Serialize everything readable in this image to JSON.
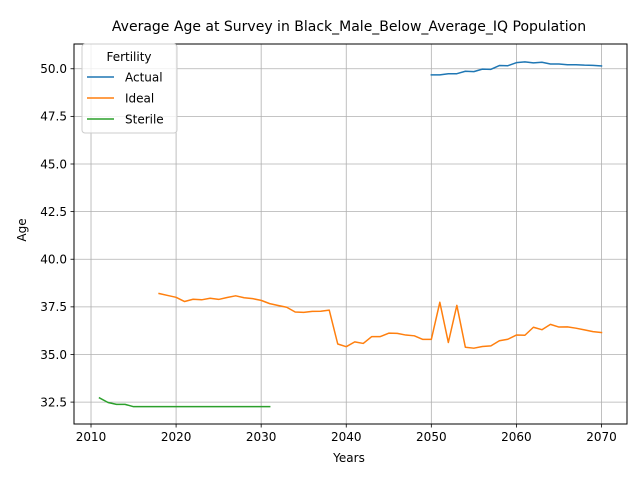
{
  "chart_data": {
    "type": "line",
    "title": "Average Age at Survey in Black_Male_Below_Average_IQ Population",
    "xlabel": "Years",
    "ylabel": "Age",
    "xlim": [
      2008,
      2073
    ],
    "ylim": [
      31.35,
      51.3
    ],
    "xticks": [
      2010,
      2020,
      2030,
      2040,
      2050,
      2060,
      2070
    ],
    "xtick_labels": [
      "2010",
      "2020",
      "2030",
      "2040",
      "2050",
      "2060",
      "2070"
    ],
    "yticks": [
      32.5,
      35.0,
      37.5,
      40.0,
      42.5,
      45.0,
      47.5,
      50.0
    ],
    "ytick_labels": [
      "32.5",
      "35.0",
      "37.5",
      "40.0",
      "42.5",
      "45.0",
      "47.5",
      "50.0"
    ],
    "grid": true,
    "legend": {
      "title": "Fertility",
      "placement": "top-left"
    },
    "series": [
      {
        "name": "Actual",
        "color": "#1f77b4",
        "x": [
          2050,
          2051,
          2052,
          2053,
          2054,
          2055,
          2056,
          2057,
          2058,
          2059,
          2060,
          2061,
          2062,
          2063,
          2064,
          2065,
          2066,
          2067,
          2068,
          2069,
          2070
        ],
        "y": [
          49.68,
          49.68,
          49.74,
          49.74,
          49.87,
          49.85,
          49.98,
          49.97,
          50.17,
          50.16,
          50.32,
          50.36,
          50.31,
          50.34,
          50.25,
          50.25,
          50.21,
          50.21,
          50.19,
          50.18,
          50.15
        ]
      },
      {
        "name": "Ideal",
        "color": "#ff7f0e",
        "x": [
          2018,
          2019,
          2020,
          2021,
          2022,
          2023,
          2024,
          2025,
          2026,
          2027,
          2028,
          2029,
          2030,
          2031,
          2032,
          2033,
          2034,
          2035,
          2036,
          2037,
          2038,
          2039,
          2040,
          2041,
          2042,
          2043,
          2044,
          2045,
          2046,
          2047,
          2048,
          2049,
          2050,
          2051,
          2052,
          2053,
          2054,
          2055,
          2056,
          2057,
          2058,
          2059,
          2060,
          2061,
          2062,
          2063,
          2064,
          2065,
          2066,
          2067,
          2068,
          2069,
          2070
        ],
        "y": [
          38.2,
          38.1,
          38.0,
          37.78,
          37.9,
          37.87,
          37.95,
          37.89,
          37.99,
          38.08,
          37.98,
          37.93,
          37.84,
          37.67,
          37.57,
          37.48,
          37.23,
          37.21,
          37.26,
          37.27,
          37.33,
          35.55,
          35.41,
          35.66,
          35.58,
          35.94,
          35.94,
          36.12,
          36.11,
          36.02,
          35.98,
          35.79,
          35.79,
          37.74,
          35.63,
          37.58,
          35.38,
          35.33,
          35.42,
          35.45,
          35.72,
          35.8,
          36.02,
          36.01,
          36.43,
          36.3,
          36.58,
          36.44,
          36.45,
          36.38,
          36.29,
          36.2,
          36.15
        ]
      },
      {
        "name": "Sterile",
        "color": "#2ca02c",
        "x": [
          2011,
          2012,
          2013,
          2014,
          2015,
          2016,
          2017,
          2018,
          2019,
          2020,
          2021,
          2022,
          2023,
          2024,
          2025,
          2026,
          2027,
          2028,
          2029,
          2030,
          2031
        ],
        "y": [
          32.72,
          32.48,
          32.38,
          32.38,
          32.26,
          32.26,
          32.26,
          32.26,
          32.26,
          32.26,
          32.26,
          32.26,
          32.26,
          32.26,
          32.26,
          32.26,
          32.26,
          32.26,
          32.26,
          32.26,
          32.26
        ]
      }
    ]
  }
}
